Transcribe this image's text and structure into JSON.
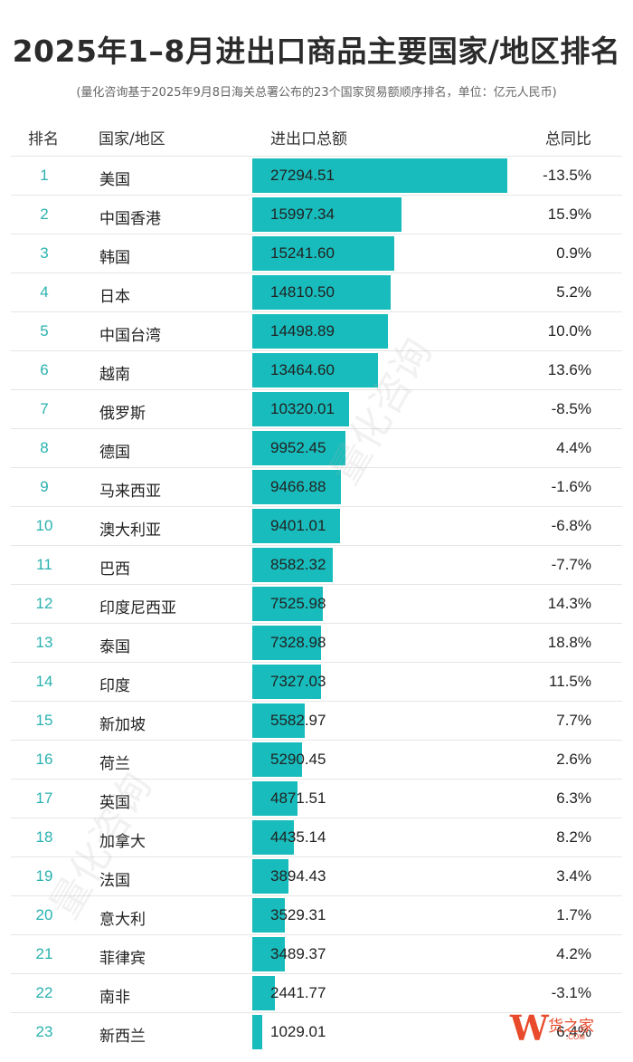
{
  "title": "2025年1–8月进出口商品主要国家/地区排名",
  "subtitle": "(量化咨询基于2025年9月8日海关总署公布的23个国家贸易额顺序排名，单位：亿元人民币)",
  "headers": {
    "rank": "排名",
    "country": "国家/地区",
    "amount": "进出口总额",
    "yoy": "总同比"
  },
  "watermark": "量化咨询",
  "logo": {
    "mark": "W",
    "text": "货之家",
    "domain": ".COM"
  },
  "colors": {
    "bar": "#18bcbc",
    "rank": "#2ab2b0"
  },
  "chart_data": {
    "type": "table",
    "title": "2025年1–8月进出口商品主要国家/地区排名",
    "columns": [
      "排名",
      "国家/地区",
      "进出口总额",
      "总同比"
    ],
    "rows": [
      {
        "rank": "1",
        "country": "美国",
        "amount": "27294.51",
        "value": 27294.51,
        "yoy": "-13.5%"
      },
      {
        "rank": "2",
        "country": "中国香港",
        "amount": "15997.34",
        "value": 15997.34,
        "yoy": "15.9%"
      },
      {
        "rank": "3",
        "country": "韩国",
        "amount": "15241.60",
        "value": 15241.6,
        "yoy": "0.9%"
      },
      {
        "rank": "4",
        "country": "日本",
        "amount": "14810.50",
        "value": 14810.5,
        "yoy": "5.2%"
      },
      {
        "rank": "5",
        "country": "中国台湾",
        "amount": "14498.89",
        "value": 14498.89,
        "yoy": "10.0%"
      },
      {
        "rank": "6",
        "country": "越南",
        "amount": "13464.60",
        "value": 13464.6,
        "yoy": "13.6%"
      },
      {
        "rank": "7",
        "country": "俄罗斯",
        "amount": "10320.01",
        "value": 10320.01,
        "yoy": "-8.5%"
      },
      {
        "rank": "8",
        "country": "德国",
        "amount": "9952.45",
        "value": 9952.45,
        "yoy": "4.4%"
      },
      {
        "rank": "9",
        "country": "马来西亚",
        "amount": "9466.88",
        "value": 9466.88,
        "yoy": "-1.6%"
      },
      {
        "rank": "10",
        "country": "澳大利亚",
        "amount": "9401.01",
        "value": 9401.01,
        "yoy": "-6.8%"
      },
      {
        "rank": "11",
        "country": "巴西",
        "amount": "8582.32",
        "value": 8582.32,
        "yoy": "-7.7%"
      },
      {
        "rank": "12",
        "country": "印度尼西亚",
        "amount": "7525.98",
        "value": 7525.98,
        "yoy": "14.3%"
      },
      {
        "rank": "13",
        "country": "泰国",
        "amount": "7328.98",
        "value": 7328.98,
        "yoy": "18.8%"
      },
      {
        "rank": "14",
        "country": "印度",
        "amount": "7327.03",
        "value": 7327.03,
        "yoy": "11.5%"
      },
      {
        "rank": "15",
        "country": "新加坡",
        "amount": "5582.97",
        "value": 5582.97,
        "yoy": "7.7%"
      },
      {
        "rank": "16",
        "country": "荷兰",
        "amount": "5290.45",
        "value": 5290.45,
        "yoy": "2.6%"
      },
      {
        "rank": "17",
        "country": "英国",
        "amount": "4871.51",
        "value": 4871.51,
        "yoy": "6.3%"
      },
      {
        "rank": "18",
        "country": "加拿大",
        "amount": "4435.14",
        "value": 4435.14,
        "yoy": "8.2%"
      },
      {
        "rank": "19",
        "country": "法国",
        "amount": "3894.43",
        "value": 3894.43,
        "yoy": "3.4%"
      },
      {
        "rank": "20",
        "country": "意大利",
        "amount": "3529.31",
        "value": 3529.31,
        "yoy": "1.7%"
      },
      {
        "rank": "21",
        "country": "菲律宾",
        "amount": "3489.37",
        "value": 3489.37,
        "yoy": "4.2%"
      },
      {
        "rank": "22",
        "country": "南非",
        "amount": "2441.77",
        "value": 2441.77,
        "yoy": "-3.1%"
      },
      {
        "rank": "23",
        "country": "新西兰",
        "amount": "1029.01",
        "value": 1029.01,
        "yoy": "6.4%"
      }
    ]
  }
}
